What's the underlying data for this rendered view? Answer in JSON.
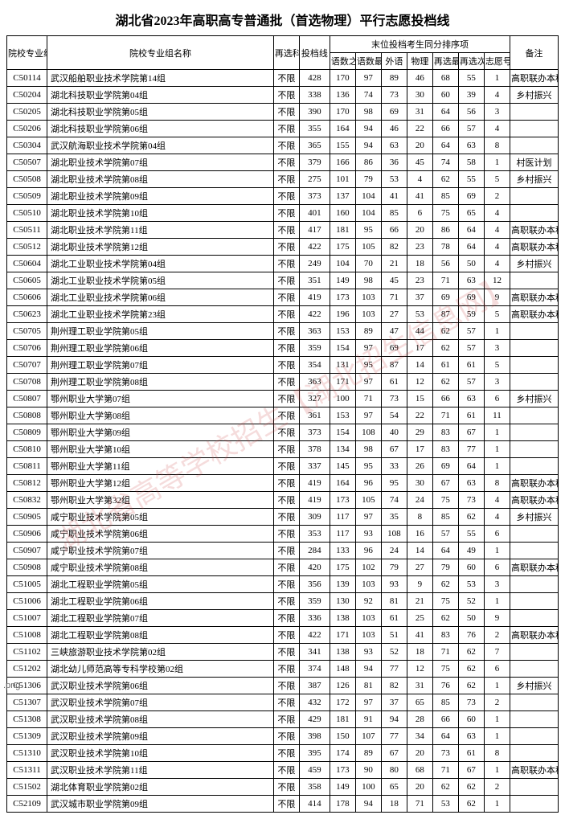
{
  "title": "湖北省2023年高职高专普通批（首选物理）平行志愿投档线",
  "watermark": "湖北省高等学校招生【湖北招生信息网】",
  "png_label": ".png",
  "headers": {
    "code": "院校专业组代号",
    "name": "院校专业组名称",
    "zaixuan": "再选科目要求",
    "toudang": "投档线",
    "tongfen_group": "末位投档考生同分排序项",
    "yushu_zh": "语数之和",
    "yushu_zg": "语数最高",
    "waiyu": "外语",
    "wuli": "物理",
    "zx_zg": "再选最高",
    "zx_ch": "再选次高",
    "zhiyuan": "志愿号",
    "beizhu": "备注"
  },
  "buxian": "不限",
  "remarks": {
    "gzlb": "高职联办本科",
    "xczx": "乡村振兴",
    "cyjh": "村医计划"
  },
  "rows": [
    [
      "C50114",
      "武汉船舶职业技术学院第14组",
      "428",
      "170",
      "97",
      "89",
      "46",
      "68",
      "55",
      "1",
      "gzlb"
    ],
    [
      "C50204",
      "湖北科技职业学院第04组",
      "338",
      "136",
      "74",
      "73",
      "30",
      "60",
      "39",
      "4",
      "xczx"
    ],
    [
      "C50205",
      "湖北科技职业学院第05组",
      "390",
      "170",
      "98",
      "69",
      "31",
      "64",
      "56",
      "3",
      ""
    ],
    [
      "C50206",
      "湖北科技职业学院第06组",
      "355",
      "164",
      "94",
      "46",
      "22",
      "66",
      "57",
      "4",
      ""
    ],
    [
      "C50304",
      "武汉航海职业技术学院第04组",
      "365",
      "155",
      "94",
      "63",
      "20",
      "64",
      "63",
      "8",
      ""
    ],
    [
      "C50507",
      "湖北职业技术学院第07组",
      "379",
      "166",
      "86",
      "36",
      "45",
      "74",
      "58",
      "1",
      "cyjh"
    ],
    [
      "C50508",
      "湖北职业技术学院第08组",
      "275",
      "101",
      "79",
      "53",
      "4",
      "62",
      "55",
      "5",
      "xczx"
    ],
    [
      "C50509",
      "湖北职业技术学院第09组",
      "373",
      "137",
      "104",
      "41",
      "41",
      "85",
      "69",
      "2",
      ""
    ],
    [
      "C50510",
      "湖北职业技术学院第10组",
      "401",
      "160",
      "104",
      "85",
      "6",
      "75",
      "65",
      "4",
      ""
    ],
    [
      "C50511",
      "湖北职业技术学院第11组",
      "417",
      "181",
      "95",
      "66",
      "20",
      "86",
      "64",
      "4",
      "gzlb"
    ],
    [
      "C50512",
      "湖北职业技术学院第12组",
      "422",
      "175",
      "105",
      "82",
      "23",
      "78",
      "64",
      "4",
      "gzlb"
    ],
    [
      "C50604",
      "湖北工业职业技术学院第04组",
      "249",
      "104",
      "70",
      "21",
      "18",
      "56",
      "50",
      "4",
      "xczx"
    ],
    [
      "C50605",
      "湖北工业职业技术学院第05组",
      "351",
      "149",
      "98",
      "45",
      "23",
      "71",
      "63",
      "12",
      ""
    ],
    [
      "C50606",
      "湖北工业职业技术学院第06组",
      "419",
      "173",
      "103",
      "71",
      "37",
      "69",
      "69",
      "9",
      "gzlb"
    ],
    [
      "C50623",
      "湖北工业职业技术学院第23组",
      "422",
      "196",
      "103",
      "27",
      "53",
      "87",
      "59",
      "5",
      "gzlb"
    ],
    [
      "C50705",
      "荆州理工职业学院第05组",
      "363",
      "153",
      "89",
      "47",
      "44",
      "62",
      "57",
      "1",
      ""
    ],
    [
      "C50706",
      "荆州理工职业学院第06组",
      "359",
      "154",
      "97",
      "69",
      "17",
      "62",
      "57",
      "3",
      ""
    ],
    [
      "C50707",
      "荆州理工职业学院第07组",
      "354",
      "131",
      "95",
      "87",
      "14",
      "61",
      "61",
      "5",
      ""
    ],
    [
      "C50708",
      "荆州理工职业学院第08组",
      "363",
      "171",
      "97",
      "61",
      "12",
      "62",
      "57",
      "3",
      ""
    ],
    [
      "C50807",
      "鄂州职业大学第07组",
      "327",
      "100",
      "71",
      "73",
      "15",
      "66",
      "63",
      "6",
      "xczx"
    ],
    [
      "C50808",
      "鄂州职业大学第08组",
      "361",
      "153",
      "97",
      "54",
      "22",
      "71",
      "61",
      "11",
      ""
    ],
    [
      "C50809",
      "鄂州职业大学第09组",
      "373",
      "154",
      "108",
      "40",
      "29",
      "83",
      "67",
      "1",
      ""
    ],
    [
      "C50810",
      "鄂州职业大学第10组",
      "378",
      "134",
      "98",
      "67",
      "17",
      "83",
      "77",
      "1",
      ""
    ],
    [
      "C50811",
      "鄂州职业大学第11组",
      "337",
      "145",
      "95",
      "33",
      "26",
      "69",
      "64",
      "1",
      ""
    ],
    [
      "C50812",
      "鄂州职业大学第12组",
      "419",
      "164",
      "96",
      "95",
      "30",
      "67",
      "63",
      "8",
      "gzlb"
    ],
    [
      "C50832",
      "鄂州职业大学第32组",
      "419",
      "173",
      "105",
      "74",
      "24",
      "75",
      "73",
      "4",
      "gzlb"
    ],
    [
      "C50905",
      "咸宁职业技术学院第05组",
      "309",
      "117",
      "97",
      "35",
      "8",
      "85",
      "62",
      "4",
      "xczx"
    ],
    [
      "C50906",
      "咸宁职业技术学院第06组",
      "353",
      "117",
      "93",
      "108",
      "16",
      "57",
      "55",
      "6",
      ""
    ],
    [
      "C50907",
      "咸宁职业技术学院第07组",
      "284",
      "133",
      "96",
      "24",
      "14",
      "64",
      "49",
      "1",
      ""
    ],
    [
      "C50908",
      "咸宁职业技术学院第08组",
      "420",
      "175",
      "102",
      "79",
      "27",
      "79",
      "60",
      "6",
      "gzlb"
    ],
    [
      "C51005",
      "湖北工程职业学院第05组",
      "356",
      "139",
      "103",
      "93",
      "9",
      "62",
      "53",
      "3",
      ""
    ],
    [
      "C51006",
      "湖北工程职业学院第06组",
      "359",
      "130",
      "92",
      "81",
      "21",
      "75",
      "52",
      "1",
      ""
    ],
    [
      "C51007",
      "湖北工程职业学院第07组",
      "336",
      "138",
      "103",
      "61",
      "25",
      "62",
      "50",
      "9",
      ""
    ],
    [
      "C51008",
      "湖北工程职业学院第08组",
      "422",
      "171",
      "103",
      "51",
      "41",
      "83",
      "76",
      "2",
      "gzlb"
    ],
    [
      "C51102",
      "三峡旅游职业技术学院第02组",
      "341",
      "138",
      "93",
      "52",
      "18",
      "71",
      "62",
      "7",
      ""
    ],
    [
      "C51202",
      "湖北幼儿师范高等专科学校第02组",
      "374",
      "148",
      "94",
      "77",
      "12",
      "75",
      "62",
      "6",
      ""
    ],
    [
      "C51306",
      "武汉职业技术学院第06组",
      "387",
      "126",
      "81",
      "82",
      "31",
      "76",
      "62",
      "1",
      "xczx"
    ],
    [
      "C51307",
      "武汉职业技术学院第07组",
      "432",
      "172",
      "97",
      "37",
      "65",
      "85",
      "73",
      "2",
      ""
    ],
    [
      "C51308",
      "武汉职业技术学院第08组",
      "429",
      "181",
      "91",
      "94",
      "28",
      "66",
      "60",
      "1",
      ""
    ],
    [
      "C51309",
      "武汉职业技术学院第09组",
      "398",
      "150",
      "107",
      "77",
      "34",
      "64",
      "63",
      "1",
      ""
    ],
    [
      "C51310",
      "武汉职业技术学院第10组",
      "395",
      "174",
      "89",
      "67",
      "20",
      "73",
      "61",
      "8",
      ""
    ],
    [
      "C51311",
      "武汉职业技术学院第11组",
      "459",
      "173",
      "90",
      "80",
      "68",
      "71",
      "67",
      "1",
      "gzlb"
    ],
    [
      "C51502",
      "湖北体育职业学院第02组",
      "358",
      "149",
      "100",
      "65",
      "20",
      "62",
      "62",
      "2",
      ""
    ],
    [
      "C52109",
      "武汉城市职业学院第09组",
      "414",
      "178",
      "94",
      "18",
      "71",
      "53",
      "62",
      "1",
      ""
    ]
  ]
}
